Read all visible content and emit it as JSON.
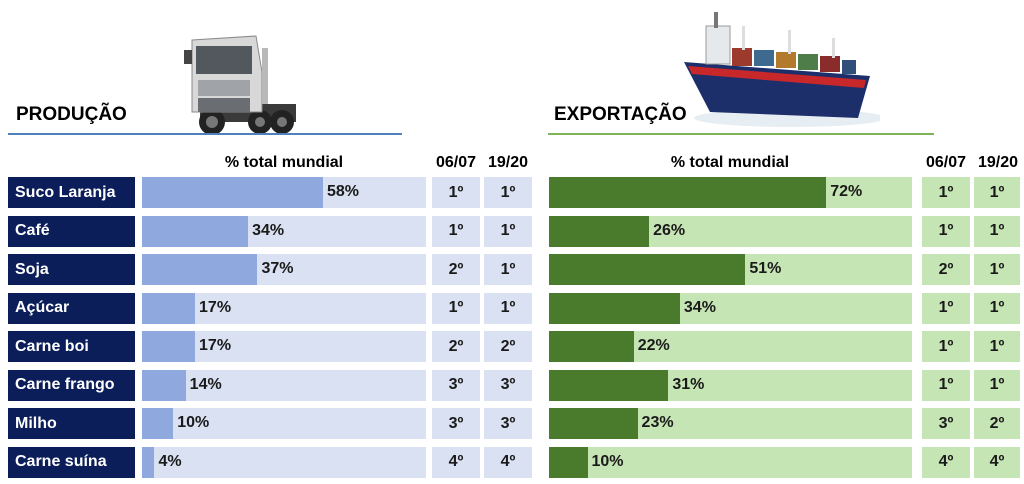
{
  "producao": {
    "title": "PRODUÇÃO",
    "header": "% total mundial",
    "col1": "06/07",
    "col2": "19/20",
    "bar_color": "#8fa9df",
    "row_color": "#d9e1f2",
    "underline_color": "#4f81bd",
    "categories": [
      "Suco Laranja",
      "Café",
      "Soja",
      "Açúcar",
      "Carne boi",
      "Carne frango",
      "Milho",
      "Carne suína"
    ],
    "values": [
      58,
      34,
      37,
      17,
      17,
      14,
      10,
      4
    ],
    "labels": [
      "58%",
      "34%",
      "37%",
      "17%",
      "17%",
      "14%",
      "10%",
      "4%"
    ],
    "rank_0607": [
      "1º",
      "1º",
      "2º",
      "1º",
      "2º",
      "3º",
      "3º",
      "4º"
    ],
    "rank_1920": [
      "1º",
      "1º",
      "1º",
      "1º",
      "2º",
      "3º",
      "3º",
      "4º"
    ]
  },
  "exportacao": {
    "title": "EXPORTAÇÃO",
    "header": "% total mundial",
    "col1": "06/07",
    "col2": "19/20",
    "bar_color": "#4a7a2c",
    "row_color": "#c6e5b4",
    "underline_color": "#7fb35a",
    "values": [
      72,
      26,
      51,
      34,
      22,
      31,
      23,
      10
    ],
    "labels": [
      "72%",
      "26%",
      "51%",
      "34%",
      "22%",
      "31%",
      "23%",
      "10%"
    ],
    "rank_0607": [
      "1º",
      "1º",
      "2º",
      "1º",
      "1º",
      "1º",
      "3º",
      "4º"
    ],
    "rank_1920": [
      "1º",
      "1º",
      "1º",
      "1º",
      "1º",
      "1º",
      "2º",
      "4º"
    ]
  },
  "chart_data": [
    {
      "type": "bar",
      "title": "PRODUÇÃO",
      "xlabel": "% total mundial",
      "categories": [
        "Suco Laranja",
        "Café",
        "Soja",
        "Açúcar",
        "Carne boi",
        "Carne frango",
        "Milho",
        "Carne suína"
      ],
      "values": [
        58,
        34,
        37,
        17,
        17,
        14,
        10,
        4
      ],
      "ranking": {
        "06/07": [
          "1º",
          "1º",
          "2º",
          "1º",
          "2º",
          "3º",
          "3º",
          "4º"
        ],
        "19/20": [
          "1º",
          "1º",
          "1º",
          "1º",
          "2º",
          "3º",
          "3º",
          "4º"
        ]
      }
    },
    {
      "type": "bar",
      "title": "EXPORTAÇÃO",
      "xlabel": "% total mundial",
      "categories": [
        "Suco Laranja",
        "Café",
        "Soja",
        "Açúcar",
        "Carne boi",
        "Carne frango",
        "Milho",
        "Carne suína"
      ],
      "values": [
        72,
        26,
        51,
        34,
        22,
        31,
        23,
        10
      ],
      "ranking": {
        "06/07": [
          "1º",
          "1º",
          "2º",
          "1º",
          "1º",
          "1º",
          "3º",
          "4º"
        ],
        "19/20": [
          "1º",
          "1º",
          "1º",
          "1º",
          "1º",
          "1º",
          "2º",
          "4º"
        ]
      }
    }
  ]
}
